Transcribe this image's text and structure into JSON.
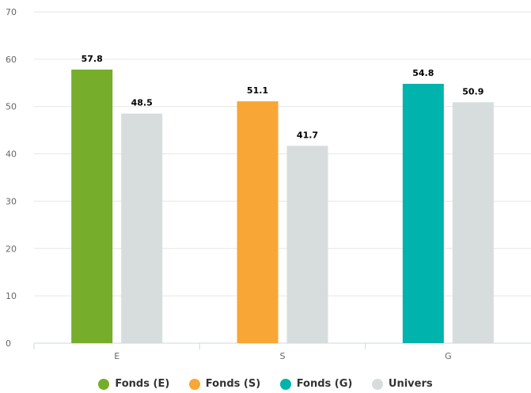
{
  "chart_data": {
    "type": "bar",
    "categories": [
      "E",
      "S",
      "G"
    ],
    "ylim": [
      0,
      70
    ],
    "yticks": [
      0,
      10,
      20,
      30,
      40,
      50,
      60,
      70
    ],
    "grid": true,
    "legend_position": "bottom",
    "series": [
      {
        "name": "Fonds",
        "values": [
          57.8,
          51.1,
          54.8
        ],
        "colors": [
          "#76ad2b",
          "#f8a636",
          "#00b3ad"
        ]
      },
      {
        "name": "Univers",
        "values": [
          48.5,
          41.7,
          50.9
        ],
        "colors": [
          "#d7dddd",
          "#d7dddd",
          "#d7dddd"
        ]
      }
    ],
    "legend": [
      {
        "label": "Fonds (E)",
        "color": "#76ad2b"
      },
      {
        "label": "Fonds (S)",
        "color": "#f8a636"
      },
      {
        "label": "Fonds (G)",
        "color": "#00b3ad"
      },
      {
        "label": "Univers",
        "color": "#d7dddd"
      }
    ]
  }
}
